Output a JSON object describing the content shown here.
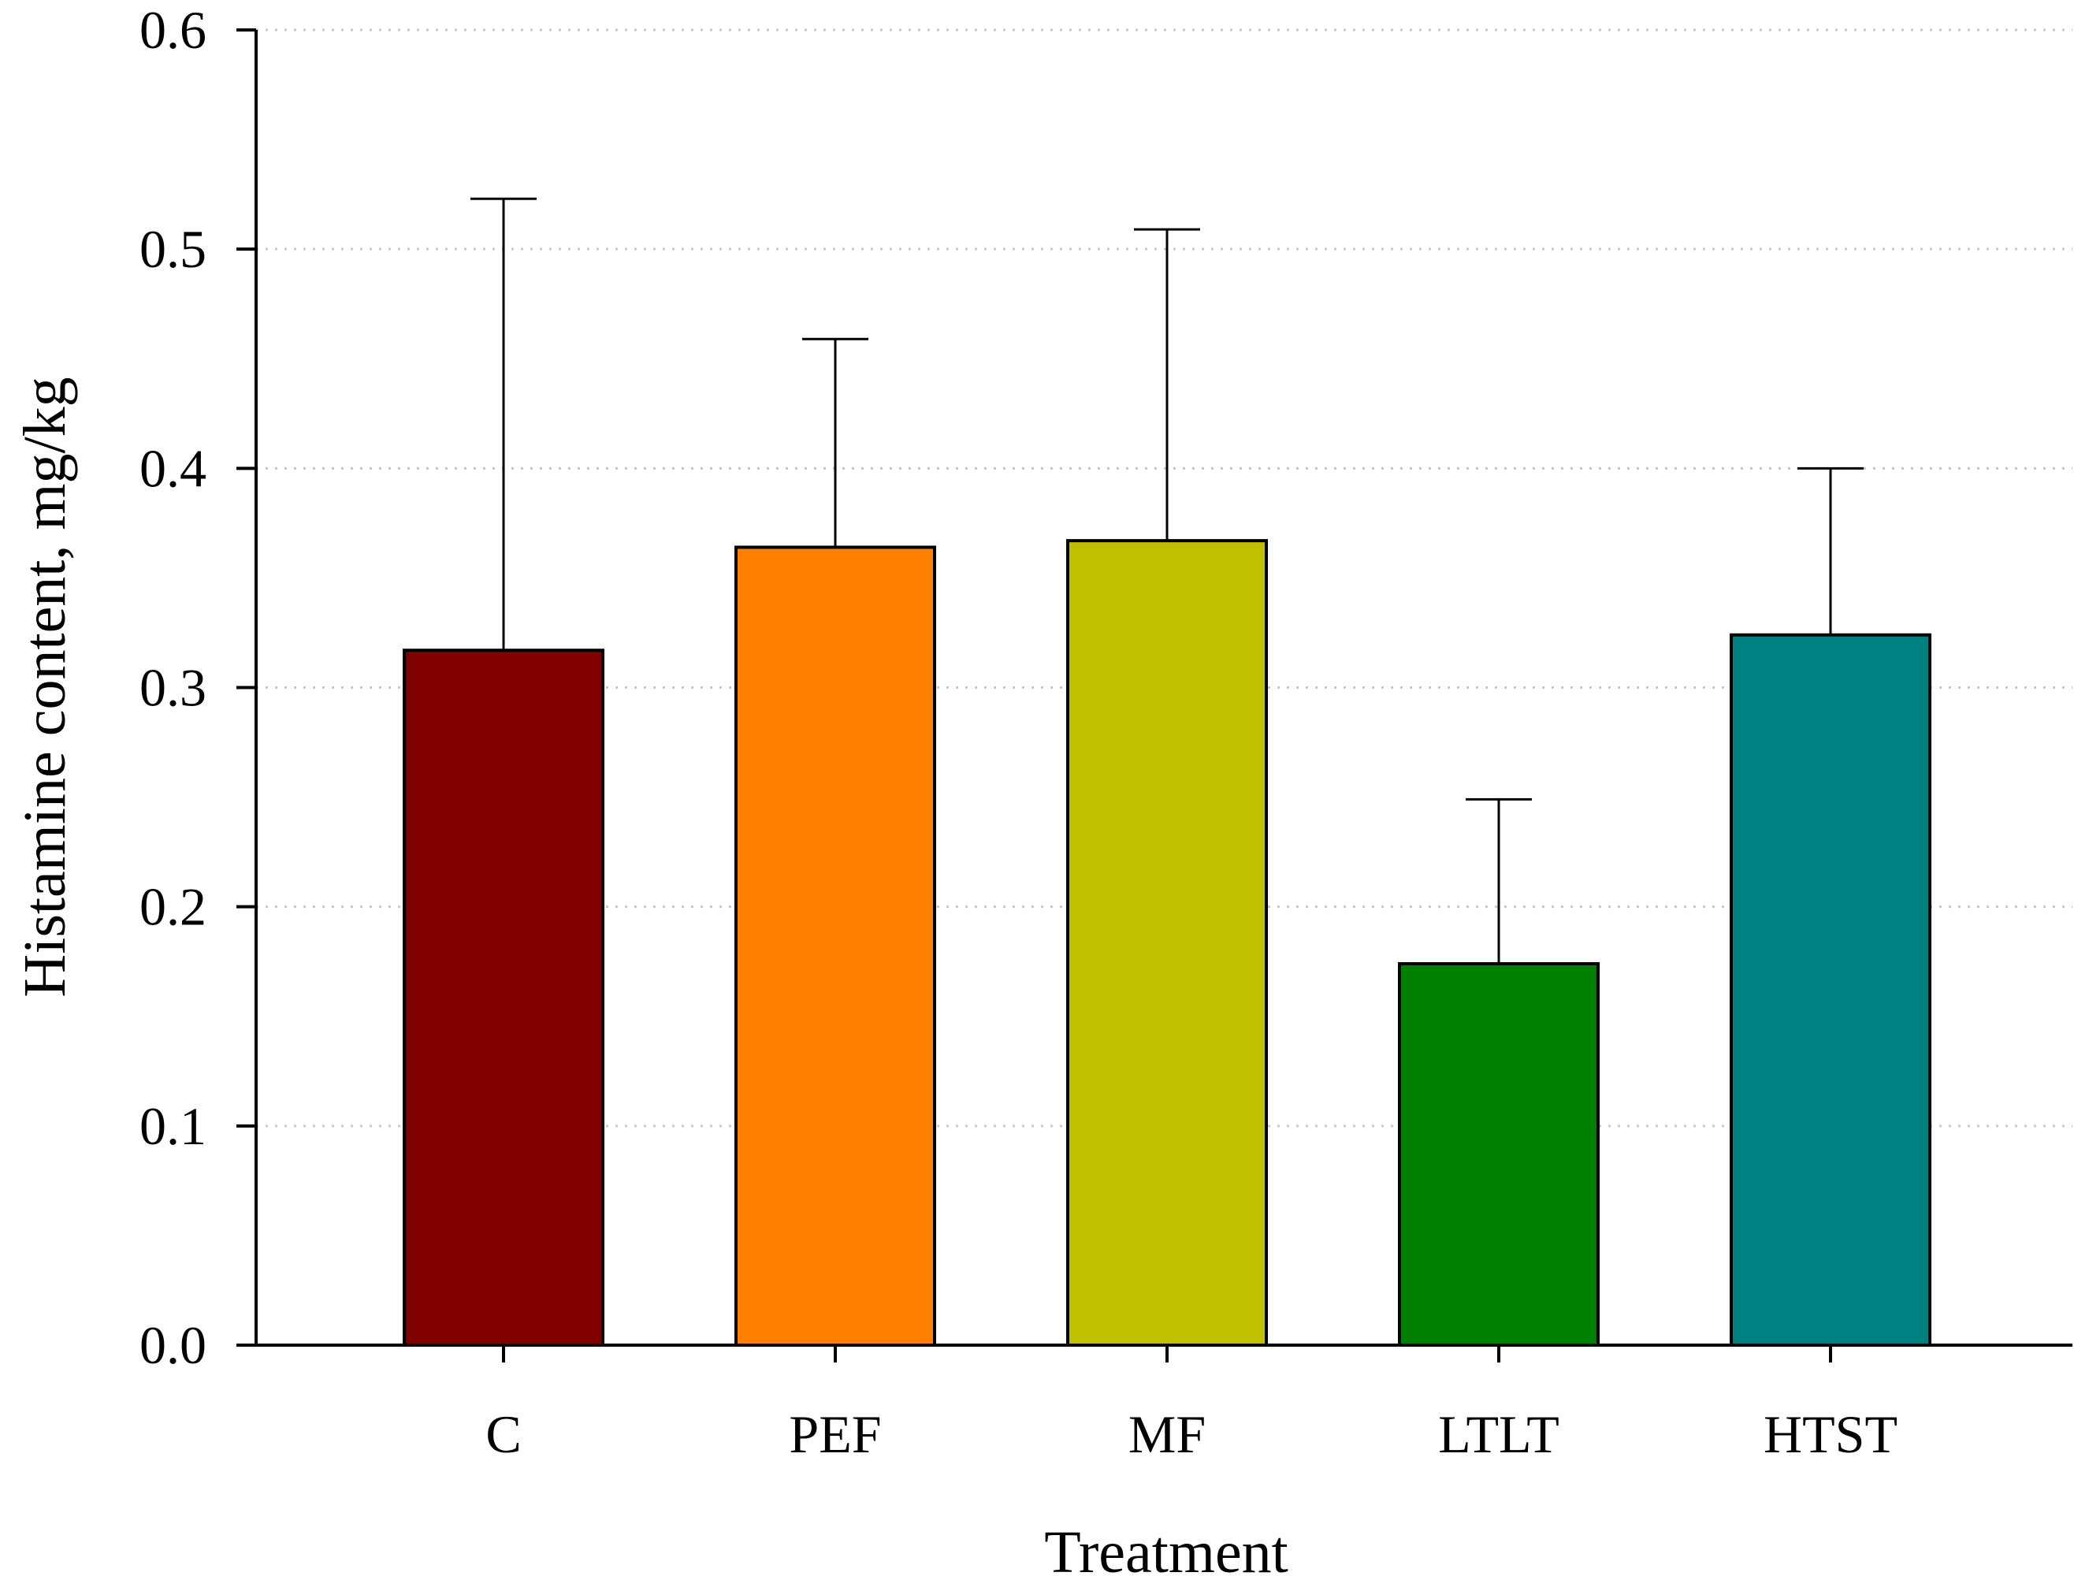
{
  "chart_data": {
    "type": "bar",
    "title": "",
    "xlabel": "Treatment",
    "ylabel": "Histamine content, mg/kg",
    "categories": [
      "C",
      "PEF",
      "MF",
      "LTLT",
      "HTST"
    ],
    "values": [
      0.317,
      0.364,
      0.367,
      0.174,
      0.324
    ],
    "error_upper": [
      0.523,
      0.459,
      0.509,
      0.249,
      0.4
    ],
    "colors": [
      "#800000",
      "#ff8000",
      "#c0c000",
      "#008000",
      "#008080"
    ],
    "ylim": [
      0,
      0.6
    ],
    "yticks": [
      "0.0",
      "0.1",
      "0.2",
      "0.3",
      "0.4",
      "0.5",
      "0.6"
    ],
    "grid": true
  }
}
